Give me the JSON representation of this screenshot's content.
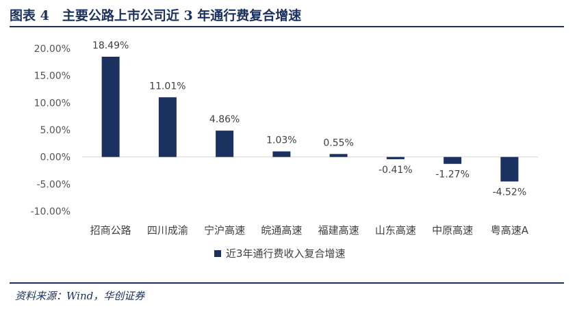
{
  "figure": {
    "title": "图表 4　主要公路上市公司近 3 年通行费复合增速",
    "source": "资料来源：Wind，华创证券"
  },
  "colors": {
    "bar": "#1b3160",
    "rule": "#1b3160",
    "zero_line": "#d9d9d9"
  },
  "chart_data": {
    "type": "bar",
    "categories": [
      "招商公路",
      "四川成渝",
      "宁沪高速",
      "皖通高速",
      "福建高速",
      "山东高速",
      "中原高速",
      "粤高速A"
    ],
    "series": [
      {
        "name": "近3年通行费收入复合增速",
        "values": [
          18.49,
          11.01,
          4.86,
          1.03,
          0.55,
          -0.41,
          -1.27,
          -4.52
        ]
      }
    ],
    "data_labels": [
      "18.49%",
      "11.01%",
      "4.86%",
      "1.03%",
      "0.55%",
      "-0.41%",
      "-1.27%",
      "-4.52%"
    ],
    "yticks": [
      20,
      15,
      10,
      5,
      0,
      -5,
      -10
    ],
    "ytick_labels": [
      "20.00%",
      "15.00%",
      "10.00%",
      "5.00%",
      "0.00%",
      "-5.00%",
      "-10.00%"
    ],
    "ylim": [
      -10,
      20
    ],
    "grid": false,
    "legend": "bottom-center"
  }
}
